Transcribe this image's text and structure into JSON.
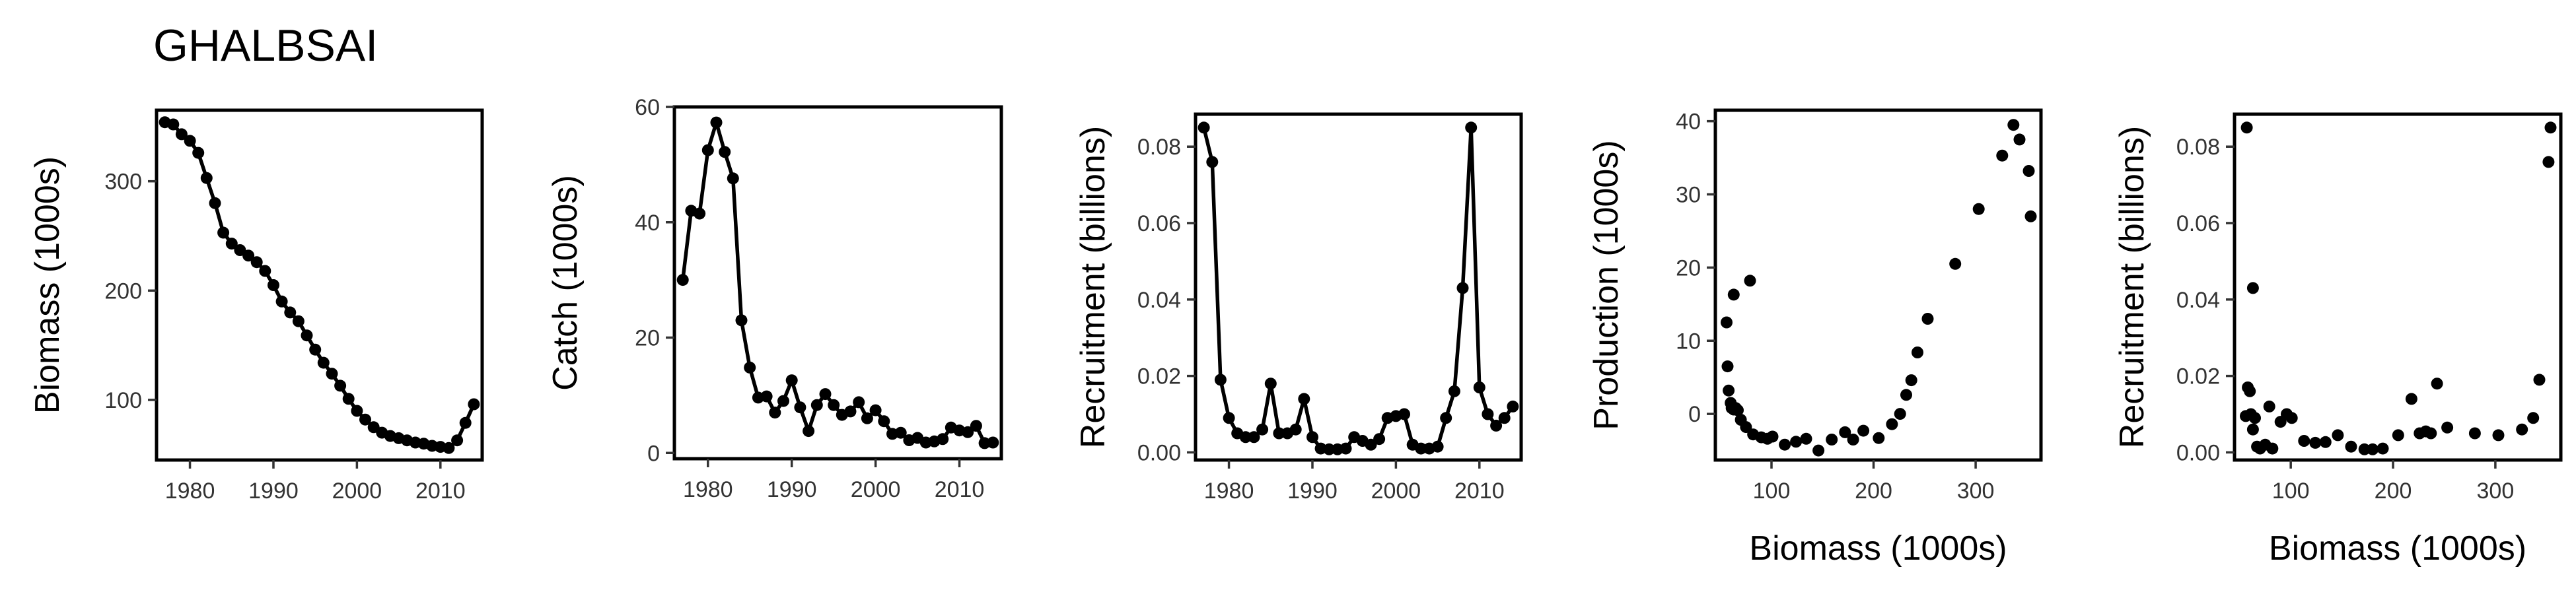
{
  "figure_title": "GHALBSAI",
  "colors": {
    "ink": "#000000",
    "tick": "#333333",
    "background": "#ffffff"
  },
  "chart_data": [
    {
      "id": "biomass",
      "type": "line",
      "xlabel": "",
      "ylabel": "Biomass (1000s)",
      "xlim": [
        1976,
        2015
      ],
      "ylim": [
        45,
        365
      ],
      "xticks": [
        1980,
        1990,
        2000,
        2010
      ],
      "yticks": [
        100,
        200,
        300
      ],
      "grid": false,
      "x": [
        1977,
        1978,
        1979,
        1980,
        1981,
        1982,
        1983,
        1984,
        1985,
        1986,
        1987,
        1988,
        1989,
        1990,
        1991,
        1992,
        1993,
        1994,
        1995,
        1996,
        1997,
        1998,
        1999,
        2000,
        2001,
        2002,
        2003,
        2004,
        2005,
        2006,
        2007,
        2008,
        2009,
        2010,
        2011,
        2012,
        2013,
        2014
      ],
      "y": [
        354,
        352,
        343,
        337,
        326,
        303,
        280,
        253,
        243,
        237,
        232,
        226,
        218,
        205,
        190,
        180,
        172,
        159,
        146,
        134,
        124,
        113,
        101,
        90,
        82,
        75,
        70,
        67,
        65,
        63,
        61,
        60,
        58,
        57,
        56,
        63,
        79,
        96
      ]
    },
    {
      "id": "catch",
      "type": "line",
      "xlabel": "",
      "ylabel": "Catch (1000s)",
      "xlim": [
        1976,
        2015
      ],
      "ylim": [
        -1,
        60
      ],
      "xticks": [
        1980,
        1990,
        2000,
        2010
      ],
      "yticks": [
        0,
        20,
        40,
        60
      ],
      "grid": false,
      "x": [
        1977,
        1978,
        1979,
        1980,
        1981,
        1982,
        1983,
        1984,
        1985,
        1986,
        1987,
        1988,
        1989,
        1990,
        1991,
        1992,
        1993,
        1994,
        1995,
        1996,
        1997,
        1998,
        1999,
        2000,
        2001,
        2002,
        2003,
        2004,
        2005,
        2006,
        2007,
        2008,
        2009,
        2010,
        2011,
        2012,
        2013,
        2014
      ],
      "y": [
        30,
        42,
        41.5,
        52.5,
        57.3,
        52.2,
        47.6,
        23,
        14.8,
        9.6,
        9.8,
        7,
        9,
        12.6,
        7.9,
        3.8,
        8.3,
        10.2,
        8.3,
        6.6,
        7.2,
        8.8,
        6,
        7.4,
        5.5,
        3.3,
        3.5,
        2.2,
        2.6,
        1.8,
        2,
        2.4,
        4.4,
        3.9,
        3.6,
        4.7,
        1.7,
        1.8
      ]
    },
    {
      "id": "recruitment",
      "type": "line",
      "xlabel": "",
      "ylabel": "Recruitment (billions)",
      "xlim": [
        1976,
        2015
      ],
      "ylim": [
        -0.002,
        0.0885
      ],
      "xticks": [
        1980,
        1990,
        2000,
        2010
      ],
      "yticks": [
        0.0,
        0.02,
        0.04,
        0.06,
        0.08
      ],
      "tick_labels_y": [
        "0.00",
        "0.02",
        "0.04",
        "0.06",
        "0.08"
      ],
      "grid": false,
      "x": [
        1977,
        1978,
        1979,
        1980,
        1981,
        1982,
        1983,
        1984,
        1985,
        1986,
        1987,
        1988,
        1989,
        1990,
        1991,
        1992,
        1993,
        1994,
        1995,
        1996,
        1997,
        1998,
        1999,
        2000,
        2001,
        2002,
        2003,
        2004,
        2005,
        2006,
        2007,
        2008,
        2009,
        2010,
        2011,
        2012,
        2013,
        2014
      ],
      "y": [
        0.085,
        0.076,
        0.019,
        0.009,
        0.005,
        0.004,
        0.004,
        0.006,
        0.018,
        0.005,
        0.005,
        0.006,
        0.014,
        0.004,
        0.001,
        0.0008,
        0.0008,
        0.001,
        0.004,
        0.003,
        0.002,
        0.0035,
        0.009,
        0.0095,
        0.01,
        0.002,
        0.001,
        0.001,
        0.0015,
        0.009,
        0.016,
        0.043,
        0.085,
        0.017,
        0.01,
        0.007,
        0.009,
        0.012
      ]
    },
    {
      "id": "production-vs-biomass",
      "type": "scatter",
      "xlabel": "Biomass (1000s)",
      "ylabel": "Production (1000s)",
      "xlim": [
        45,
        364
      ],
      "ylim": [
        -6.3,
        41.5
      ],
      "xticks": [
        100,
        200,
        300
      ],
      "yticks": [
        0,
        10,
        20,
        30,
        40
      ],
      "grid": false,
      "x": [
        57,
        58,
        60,
        61,
        63,
        65,
        67,
        70,
        75,
        82,
        90,
        96,
        101,
        113,
        124,
        134,
        146,
        159,
        172,
        180,
        190,
        205,
        218,
        226,
        232,
        237,
        243,
        253,
        280,
        303,
        326,
        337,
        343,
        352,
        354,
        56,
        63,
        79
      ],
      "y": [
        6.5,
        3.2,
        1.5,
        0.8,
        0.6,
        0.8,
        0.5,
        -0.8,
        -1.8,
        -2.8,
        -3.2,
        -3.4,
        -3.1,
        -4.2,
        -3.8,
        -3.4,
        -5,
        -3.5,
        -2.5,
        -3.5,
        -2.3,
        -3.3,
        -1.4,
        0,
        2.6,
        4.6,
        8.4,
        13,
        20.5,
        28,
        35.3,
        39.5,
        37.5,
        33.2,
        27,
        12.5,
        16.3,
        18.2
      ]
    },
    {
      "id": "recruitment-vs-biomass",
      "type": "scatter",
      "xlabel": "Biomass (1000s)",
      "ylabel": "Recruitment (billions)",
      "xlim": [
        45,
        364
      ],
      "ylim": [
        -0.002,
        0.0885
      ],
      "xticks": [
        100,
        200,
        300
      ],
      "yticks": [
        0.0,
        0.02,
        0.04,
        0.06,
        0.08
      ],
      "tick_labels_y": [
        "0.00",
        "0.02",
        "0.04",
        "0.06",
        "0.08"
      ],
      "grid": false,
      "x": [
        57,
        58,
        60,
        61,
        63,
        65,
        67,
        70,
        75,
        82,
        90,
        96,
        101,
        113,
        124,
        134,
        146,
        159,
        172,
        180,
        190,
        205,
        218,
        226,
        232,
        237,
        243,
        253,
        280,
        303,
        326,
        337,
        343,
        352,
        354,
        56,
        63,
        79
      ],
      "y": [
        0.085,
        0.017,
        0.016,
        0.01,
        0.043,
        0.009,
        0.0015,
        0.001,
        0.002,
        0.001,
        0.008,
        0.01,
        0.009,
        0.003,
        0.0025,
        0.0027,
        0.0045,
        0.0015,
        0.0008,
        0.0008,
        0.001,
        0.0045,
        0.014,
        0.005,
        0.0055,
        0.005,
        0.018,
        0.0065,
        0.005,
        0.0045,
        0.006,
        0.009,
        0.019,
        0.076,
        0.085,
        0.0095,
        0.006,
        0.012
      ]
    }
  ]
}
